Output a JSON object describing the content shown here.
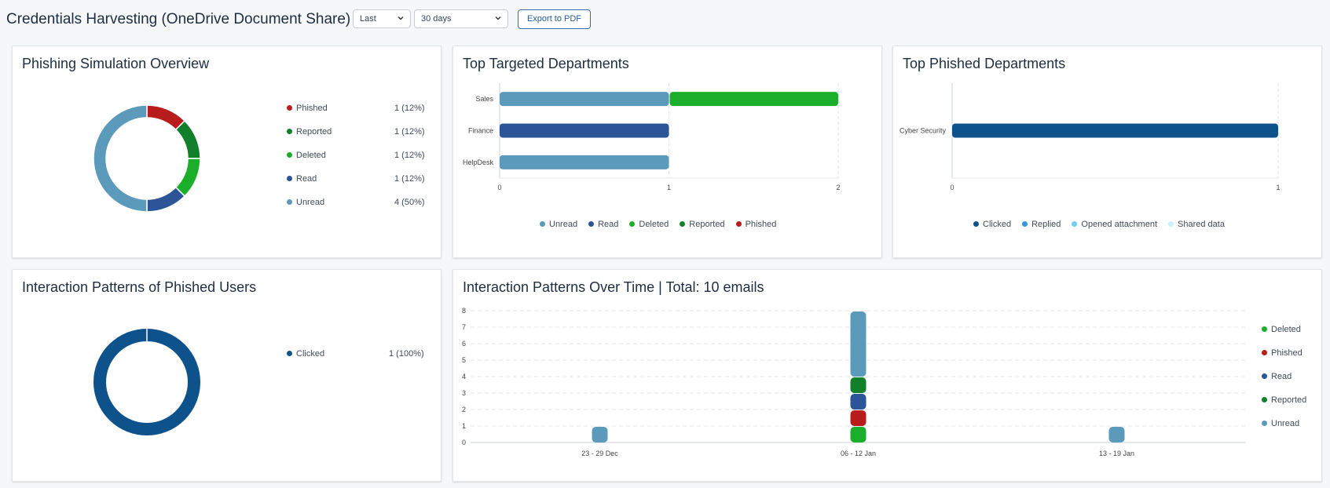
{
  "header": {
    "title": "Credentials Harvesting (OneDrive Document Share)",
    "range_unit": "Last",
    "range_value": "30 days",
    "export_label": "Export to PDF"
  },
  "colors": {
    "unread": "#5b9abb",
    "read": "#2b5596",
    "deleted": "#1aae2b",
    "reported": "#12802a",
    "phished": "#b81c1c",
    "clicked": "#0e528c",
    "replied": "#3498db",
    "opened_attachment": "#72cdf4",
    "shared_data": "#cdeff8"
  },
  "overview": {
    "title": "Phishing Simulation Overview",
    "items": [
      {
        "label": "Phished",
        "value": "1 (12%)",
        "color": "#b81c1c"
      },
      {
        "label": "Reported",
        "value": "1 (12%)",
        "color": "#12802a"
      },
      {
        "label": "Deleted",
        "value": "1 (12%)",
        "color": "#1aae2b"
      },
      {
        "label": "Read",
        "value": "1 (12%)",
        "color": "#2b5596"
      },
      {
        "label": "Unread",
        "value": "4 (50%)",
        "color": "#5b9abb"
      }
    ]
  },
  "targeted": {
    "title": "Top Targeted Departments",
    "legend": [
      {
        "label": "Unread",
        "color": "#5b9abb"
      },
      {
        "label": "Read",
        "color": "#2b5596"
      },
      {
        "label": "Deleted",
        "color": "#1aae2b"
      },
      {
        "label": "Reported",
        "color": "#12802a"
      },
      {
        "label": "Phished",
        "color": "#b81c1c"
      }
    ]
  },
  "phished": {
    "title": "Top Phished Departments",
    "legend": [
      {
        "label": "Clicked",
        "color": "#0e528c"
      },
      {
        "label": "Replied",
        "color": "#3498db"
      },
      {
        "label": "Opened attachment",
        "color": "#72cdf4"
      },
      {
        "label": "Shared data",
        "color": "#cdeff8"
      }
    ]
  },
  "interaction": {
    "title": "Interaction Patterns of Phished Users",
    "items": [
      {
        "label": "Clicked",
        "value": "1 (100%)",
        "color": "#0e528c"
      }
    ]
  },
  "overtime": {
    "title": "Interaction Patterns Over Time | Total: 10 emails",
    "legend": [
      {
        "label": "Deleted",
        "color": "#1aae2b"
      },
      {
        "label": "Phished",
        "color": "#b81c1c"
      },
      {
        "label": "Read",
        "color": "#2b5596"
      },
      {
        "label": "Reported",
        "color": "#12802a"
      },
      {
        "label": "Unread",
        "color": "#5b9abb"
      }
    ]
  },
  "chart_data": [
    {
      "type": "pie",
      "categories": [
        "Phished",
        "Reported",
        "Deleted",
        "Read",
        "Unread"
      ],
      "values": [
        1,
        1,
        1,
        1,
        4
      ]
    },
    {
      "type": "bar",
      "orientation": "horizontal",
      "categories": [
        "Sales",
        "Finance",
        "HelpDesk"
      ],
      "series": [
        {
          "name": "Unread",
          "values": [
            1,
            0,
            1
          ]
        },
        {
          "name": "Read",
          "values": [
            0,
            1,
            0
          ]
        },
        {
          "name": "Deleted",
          "values": [
            1,
            0,
            0
          ]
        },
        {
          "name": "Reported",
          "values": [
            0,
            0,
            0
          ]
        },
        {
          "name": "Phished",
          "values": [
            0,
            0,
            0
          ]
        }
      ],
      "xlim": [
        0,
        2
      ],
      "xticks": [
        "0",
        "1",
        "2"
      ],
      "stacked": true,
      "legend": "bottom",
      "grid": true
    },
    {
      "type": "bar",
      "orientation": "horizontal",
      "categories": [
        "Cyber Security"
      ],
      "series": [
        {
          "name": "Clicked",
          "values": [
            1
          ]
        },
        {
          "name": "Replied",
          "values": [
            0
          ]
        },
        {
          "name": "Opened attachment",
          "values": [
            0
          ]
        },
        {
          "name": "Shared data",
          "values": [
            0
          ]
        }
      ],
      "xlim": [
        0,
        1
      ],
      "xticks": [
        "0",
        "1"
      ],
      "stacked": true,
      "legend": "bottom",
      "grid": true
    },
    {
      "type": "pie",
      "categories": [
        "Clicked"
      ],
      "values": [
        1
      ]
    },
    {
      "type": "bar",
      "categories": [
        "23 - 29 Dec",
        "06 - 12 Jan",
        "13 - 19 Jan"
      ],
      "series": [
        {
          "name": "Deleted",
          "values": [
            0,
            1,
            0
          ]
        },
        {
          "name": "Phished",
          "values": [
            0,
            1,
            0
          ]
        },
        {
          "name": "Read",
          "values": [
            0,
            1,
            0
          ]
        },
        {
          "name": "Reported",
          "values": [
            0,
            1,
            0
          ]
        },
        {
          "name": "Unread",
          "values": [
            1,
            4,
            1
          ]
        }
      ],
      "ylim": [
        0,
        8
      ],
      "yticks": [
        "0",
        "1",
        "2",
        "3",
        "4",
        "5",
        "6",
        "7",
        "8"
      ],
      "stacked": true,
      "legend": "right",
      "grid": true
    }
  ]
}
